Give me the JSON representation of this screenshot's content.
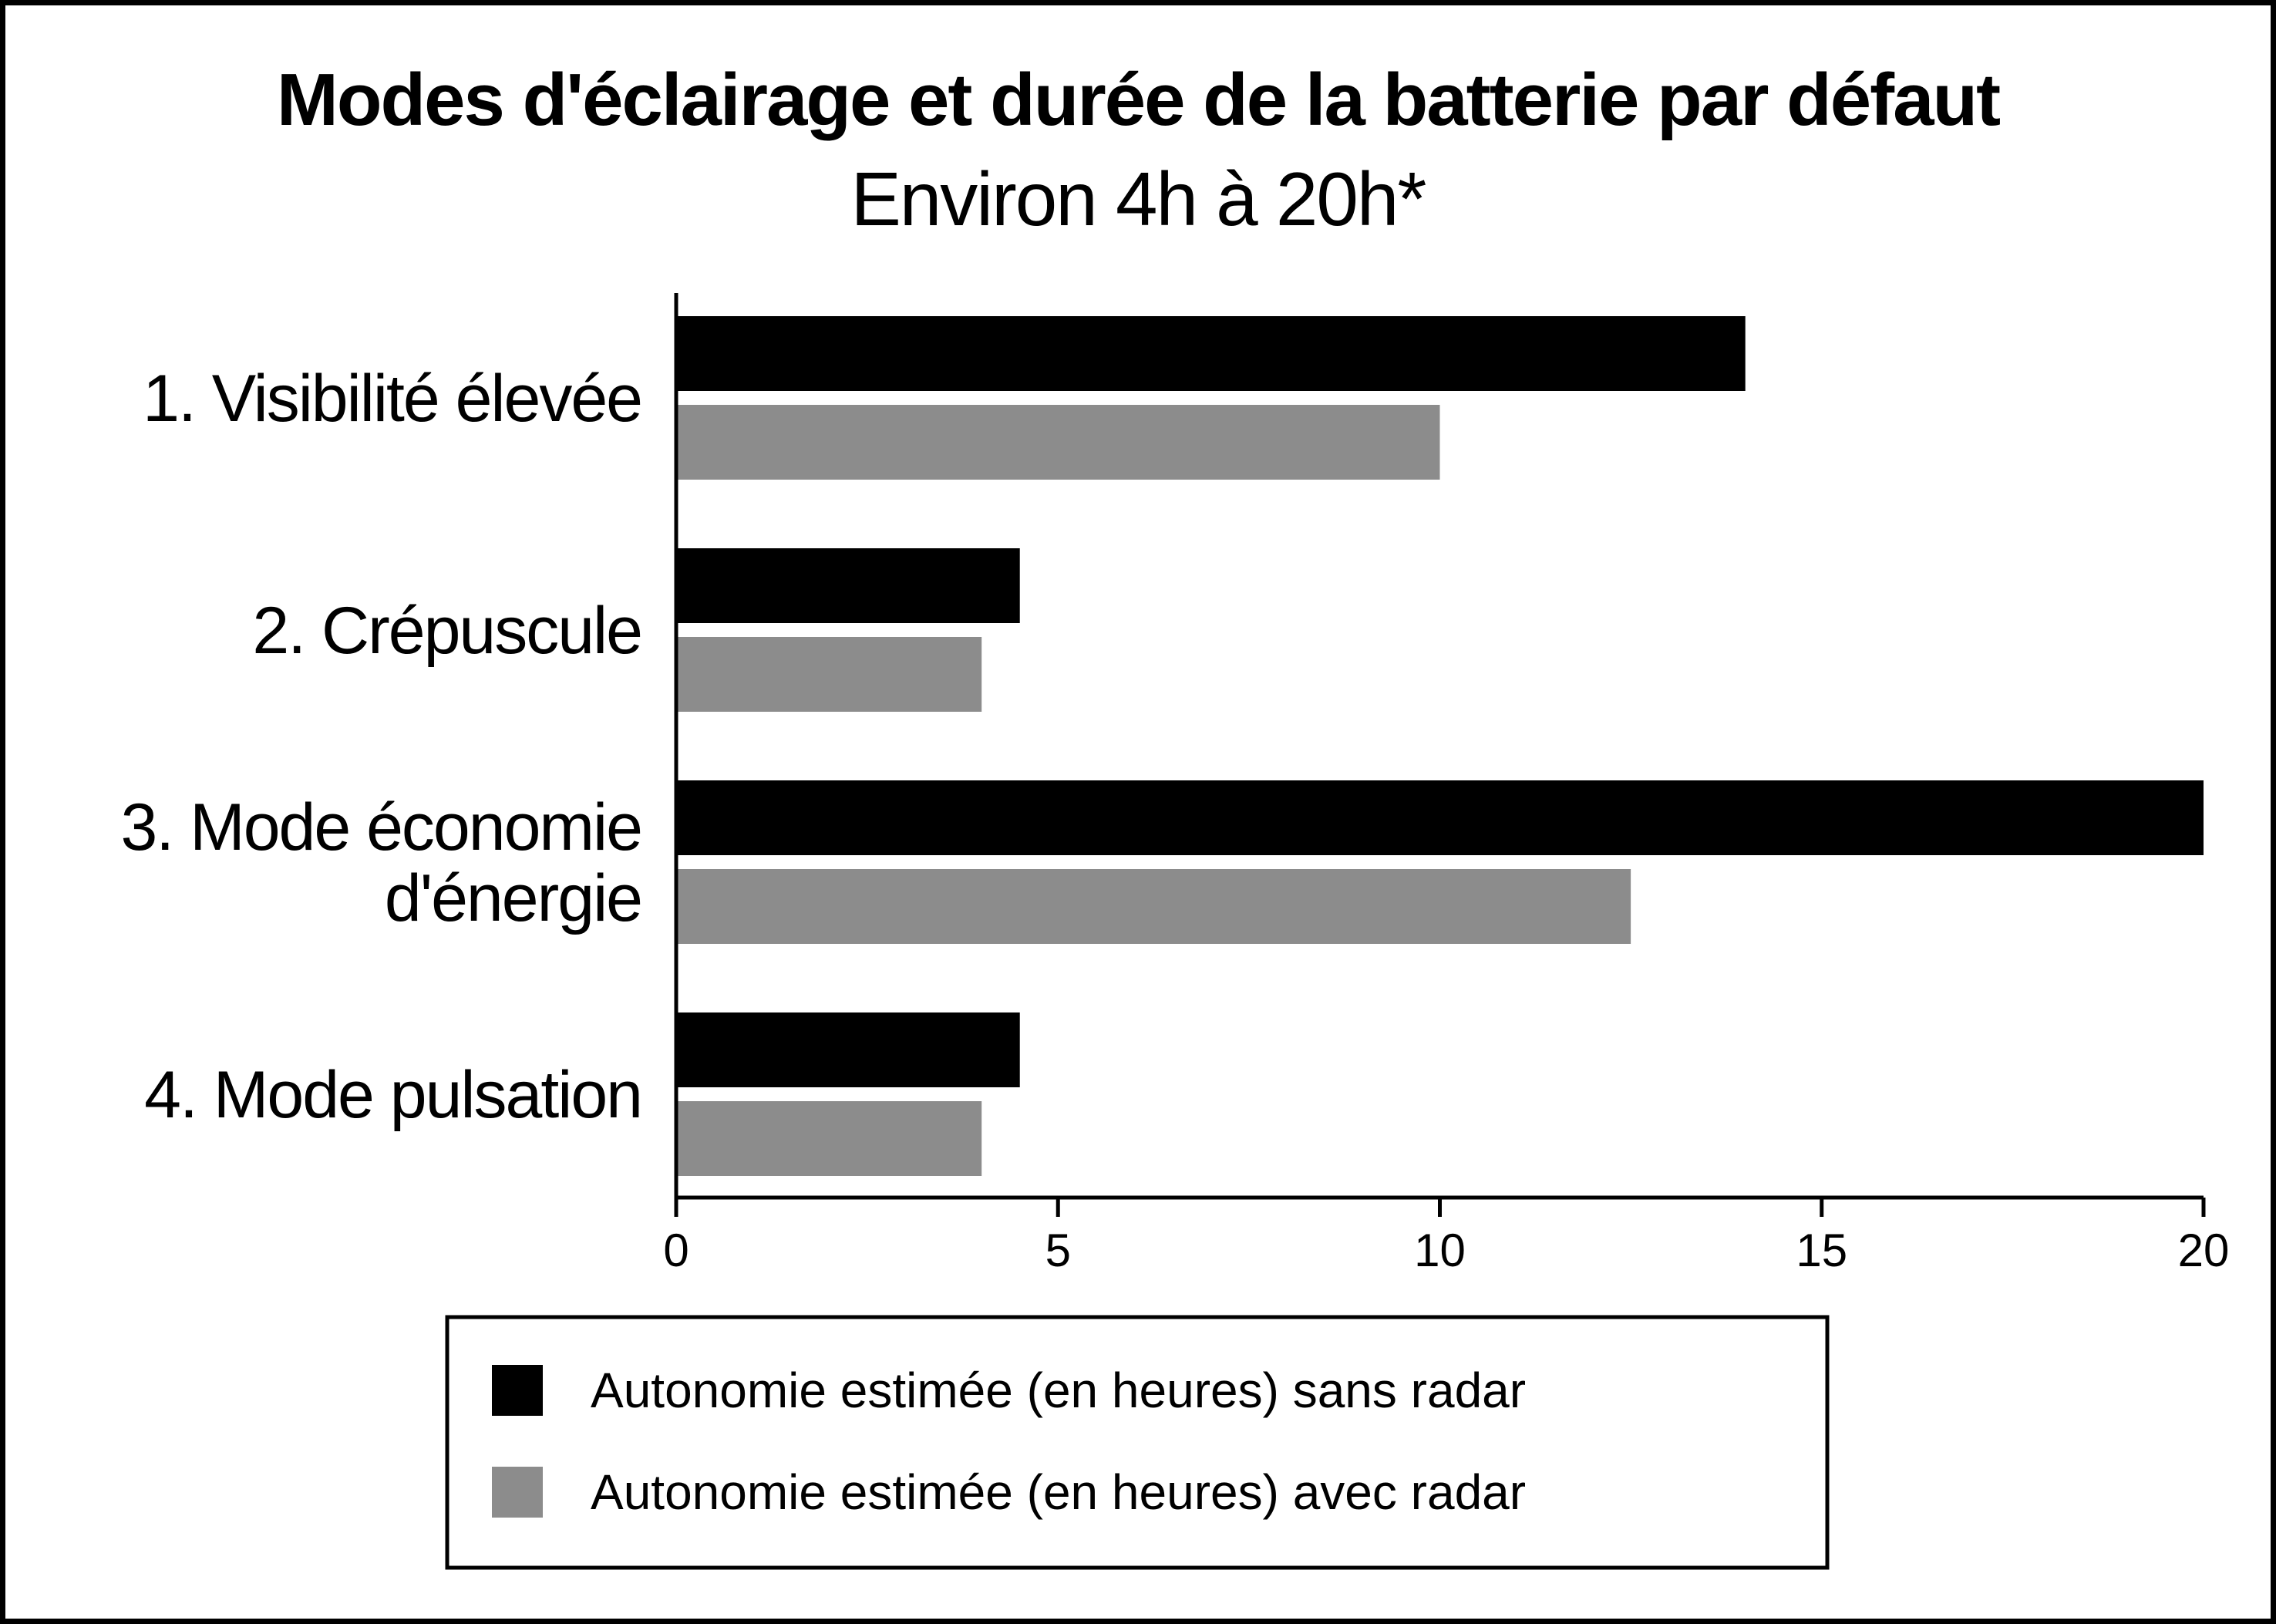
{
  "chart_data": {
    "type": "bar",
    "orientation": "horizontal",
    "title": "Modes d'éclairage et durée de la batterie par défaut",
    "subtitle": "Environ 4h à 20h*",
    "categories": [
      [
        "1. Visibilité élevée"
      ],
      [
        "2. Crépuscule"
      ],
      [
        "3.  Mode économie",
        "d'énergie"
      ],
      [
        "4. Mode pulsation"
      ]
    ],
    "series": [
      {
        "name": "Autonomie estimée (en heures) sans radar",
        "color": "#000000",
        "values": [
          14,
          4.5,
          20,
          4.5
        ]
      },
      {
        "name": "Autonomie estimée (en heures) avec radar",
        "color": "#8c8c8c",
        "values": [
          10,
          4,
          12.5,
          4
        ]
      }
    ],
    "xlim": [
      0,
      20
    ],
    "xticks": [
      "0",
      "5",
      "10",
      "15",
      "20"
    ],
    "grid": false,
    "legend_position": "bottom"
  }
}
